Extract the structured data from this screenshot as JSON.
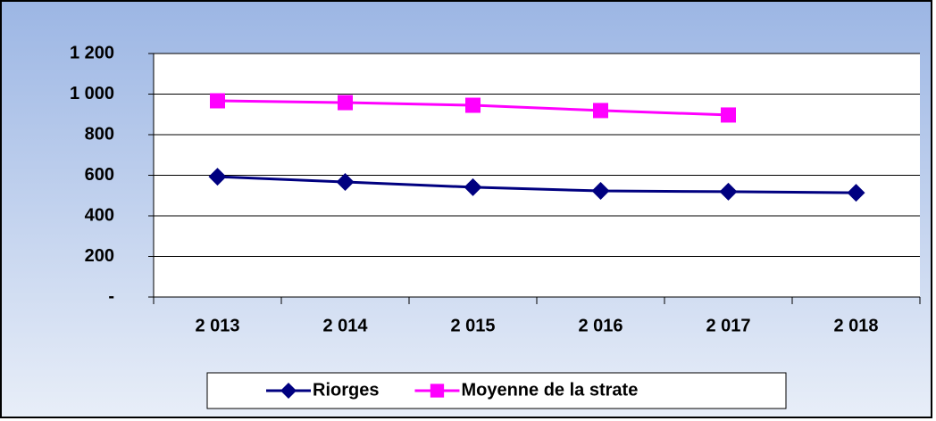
{
  "chart_data": {
    "type": "line",
    "categories": [
      "2 013",
      "2 014",
      "2 015",
      "2 016",
      "2 017",
      "2 018"
    ],
    "series": [
      {
        "name": "Riorges",
        "color": "#000080",
        "marker": "diamond",
        "values": [
          593,
          567,
          541,
          523,
          519,
          514
        ]
      },
      {
        "name": "Moyenne de la strate",
        "color": "#ff00ff",
        "marker": "square",
        "values": [
          967,
          958,
          945,
          919,
          897,
          null
        ]
      }
    ],
    "ylim": [
      0,
      1200
    ],
    "yticks": [
      {
        "value": 0,
        "label": "-"
      },
      200,
      400,
      600,
      800,
      {
        "value": 1000,
        "label": "1 000"
      },
      {
        "value": 1200,
        "label": "1 200"
      }
    ],
    "grid": true,
    "legend": "bottom"
  }
}
